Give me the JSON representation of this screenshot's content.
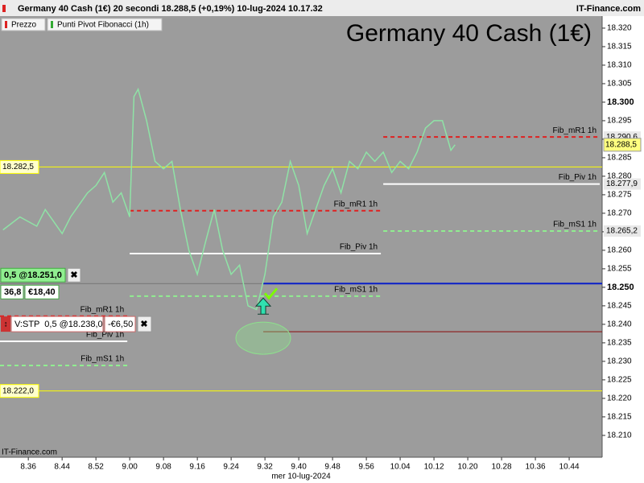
{
  "chart_data": {
    "type": "line",
    "header": "Germany 40 Cash (1€) 20 secondi 18.288,5 (+0,19%) 10-lug-2024 10.17.32",
    "source": "IT-Finance.com",
    "title": "Germany 40 Cash (1€)",
    "legend": [
      "Prezzo",
      "Punti Pivot Fibonacci (1h)"
    ],
    "x_label": "mer 10-lug-2024",
    "xlim": [
      509.3,
      651.8
    ],
    "xticks": [
      {
        "value": 516,
        "label": "8.36"
      },
      {
        "value": 524,
        "label": "8.44"
      },
      {
        "value": 532,
        "label": "8.52"
      },
      {
        "value": 540,
        "label": "9.00"
      },
      {
        "value": 548,
        "label": "9.08"
      },
      {
        "value": 556,
        "label": "9.16"
      },
      {
        "value": 564,
        "label": "9.24"
      },
      {
        "value": 572,
        "label": "9.32"
      },
      {
        "value": 580,
        "label": "9.40"
      },
      {
        "value": 588,
        "label": "9.48"
      },
      {
        "value": 596,
        "label": "9.56"
      },
      {
        "value": 604,
        "label": "10.04"
      },
      {
        "value": 612,
        "label": "10.12"
      },
      {
        "value": 620,
        "label": "10.20"
      },
      {
        "value": 628,
        "label": "10.28"
      },
      {
        "value": 636,
        "label": "10.36"
      },
      {
        "value": 644,
        "label": "10.44"
      }
    ],
    "ylim": [
      18204.1,
      18327.6
    ],
    "yticks": [
      {
        "value": 18210,
        "label": "18.210"
      },
      {
        "value": 18215,
        "label": "18.215"
      },
      {
        "value": 18220,
        "label": "18.220"
      },
      {
        "value": 18225,
        "label": "18.225"
      },
      {
        "value": 18230,
        "label": "18.230"
      },
      {
        "value": 18235,
        "label": "18.235"
      },
      {
        "value": 18240,
        "label": "18.240"
      },
      {
        "value": 18245,
        "label": "18.245"
      },
      {
        "value": 18250,
        "label": "18.250"
      },
      {
        "value": 18255,
        "label": "18.255"
      },
      {
        "value": 18260,
        "label": "18.260"
      },
      {
        "value": 18265,
        "label": "18.265"
      },
      {
        "value": 18270,
        "label": "18.270"
      },
      {
        "value": 18275,
        "label": "18.275"
      },
      {
        "value": 18280,
        "label": "18.280"
      },
      {
        "value": 18285,
        "label": "18.285"
      },
      {
        "value": 18290,
        "label": "18.290"
      },
      {
        "value": 18295,
        "label": "18.295"
      },
      {
        "value": 18300,
        "label": "18.300"
      },
      {
        "value": 18305,
        "label": "18.305"
      },
      {
        "value": 18310,
        "label": "18.310"
      },
      {
        "value": 18315,
        "label": "18.315"
      },
      {
        "value": 18320,
        "label": "18.320"
      }
    ],
    "x": [
      510,
      514,
      518,
      520,
      524,
      526,
      530,
      532,
      534,
      536,
      538,
      540,
      541,
      542,
      544,
      546,
      548,
      550,
      552,
      554,
      556,
      558,
      560,
      562,
      564,
      566,
      568,
      570,
      572,
      574,
      576,
      578,
      580,
      582,
      584,
      586,
      588,
      590,
      592,
      594,
      596,
      598,
      600,
      602,
      604,
      606,
      608,
      610,
      612,
      614,
      616,
      617
    ],
    "series": [
      {
        "name": "Prezzo",
        "color": "#8fe3a6",
        "values": [
          18265.5,
          18269,
          18266.5,
          18271,
          18264.5,
          18269,
          18275.5,
          18277.5,
          18281,
          18273,
          18275.5,
          18269,
          18301.5,
          18303.5,
          18295,
          18284,
          18282,
          18284,
          18271,
          18260,
          18253.5,
          18262.5,
          18271,
          18260,
          18253.5,
          18256,
          18245,
          18244,
          18253.5,
          18269,
          18273,
          18284,
          18277.5,
          18264.5,
          18271,
          18277.5,
          18282,
          18275.5,
          18284,
          18282,
          18286.5,
          18284,
          18286.5,
          18281,
          18284,
          18282,
          18286.5,
          18293,
          18295,
          18295,
          18287,
          18288.5
        ]
      }
    ],
    "last_price": {
      "value": 18288.5,
      "label": "18.288,5"
    },
    "levels": [
      {
        "label": "Fib_mR1 1h",
        "value": 18290.6,
        "value_label": "18.290,6",
        "color": "#e02020",
        "dash": true,
        "from": 600,
        "to": 651.8
      },
      {
        "label": "Fib_Piv 1h",
        "value": 18277.9,
        "value_label": "18.277,9",
        "color": "#ffffff",
        "dash": false,
        "from": 600,
        "to": 651.8
      },
      {
        "label": "Fib_mS1 1h",
        "value": 18265.2,
        "value_label": "18.265,2",
        "color": "#90ee90",
        "dash": true,
        "from": 600,
        "to": 651.8
      },
      {
        "label": "Fib_mR1 1h",
        "value": 18270.7,
        "color": "#e02020",
        "dash": true,
        "from": 540,
        "to": 600
      },
      {
        "label": "Fib_Piv 1h",
        "value": 18259.1,
        "color": "#ffffff",
        "dash": false,
        "from": 540,
        "to": 600
      },
      {
        "label": "Fib_mS1 1h",
        "value": 18247.6,
        "color": "#90ee90",
        "dash": true,
        "from": 540,
        "to": 600
      },
      {
        "label": "Fib_mR1 1h",
        "value": 18242.2,
        "color": "#e02020",
        "dash": true,
        "from": 509.3,
        "to": 540
      },
      {
        "label": "Fib_Piv 1h",
        "value": 18235.4,
        "color": "#ffffff",
        "dash": false,
        "from": 509.3,
        "to": 540
      },
      {
        "label": "Fib_mS1 1h",
        "value": 18228.9,
        "color": "#90ee90",
        "dash": true,
        "from": 509.3,
        "to": 540
      }
    ],
    "hlines": [
      {
        "value": 18282.5,
        "value_label": "18.282,5",
        "color": "#ffff00"
      },
      {
        "value": 18222,
        "value_label": "18.222,0",
        "color": "#ffff00"
      }
    ],
    "orders": [
      {
        "label": "0,5 @18.251,0",
        "value": 18251,
        "qty": "36,8",
        "amount": "€18,40",
        "color": "#7a7a7a"
      },
      {
        "label": "V:STP  0,5 @18.238,0",
        "value": 18238,
        "amount": "-€6,50",
        "color": "#8b1a1a"
      }
    ],
    "position": {
      "value": 18251,
      "from": 571.6,
      "color": "#0a1fc8"
    }
  }
}
